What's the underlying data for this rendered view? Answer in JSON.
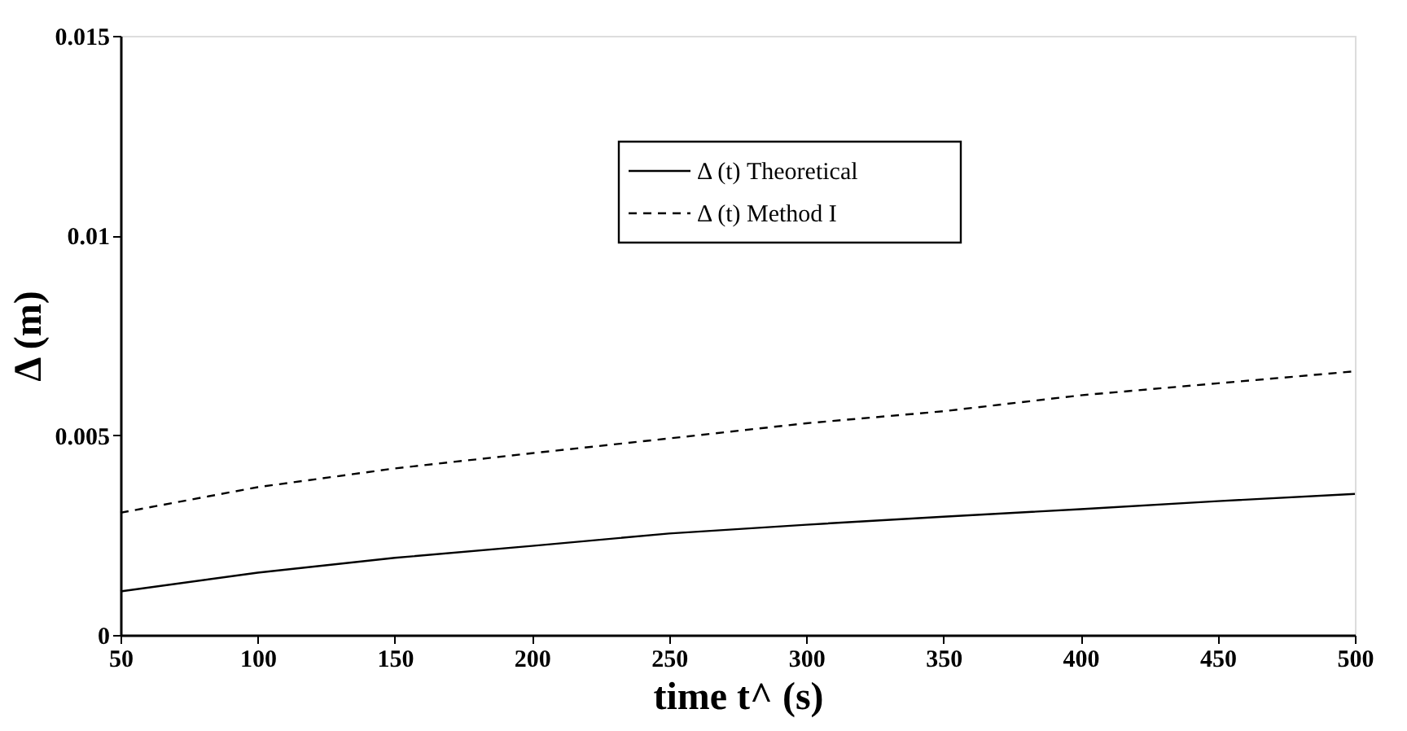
{
  "chart_data": {
    "type": "line",
    "xlabel": "time t^ (s)",
    "ylabel": "Δ (m)",
    "x": [
      50,
      100,
      150,
      200,
      250,
      300,
      350,
      400,
      450,
      500
    ],
    "series": [
      {
        "name": "Δ (t) Theoretical",
        "color": "#000000",
        "line_style": "solid",
        "values": [
          0.00109,
          0.00156,
          0.00193,
          0.00223,
          0.00254,
          0.00276,
          0.00296,
          0.00315,
          0.00335,
          0.00353
        ]
      },
      {
        "name": "Δ (t) Method I",
        "color": "#000000",
        "line_style": "dashed",
        "values": [
          0.00306,
          0.0037,
          0.00417,
          0.00455,
          0.00492,
          0.0053,
          0.0056,
          0.006,
          0.0063,
          0.0066
        ]
      }
    ],
    "xlim": [
      50,
      500
    ],
    "xticks": [
      50,
      100,
      150,
      200,
      250,
      300,
      350,
      400,
      450,
      500
    ],
    "ylim": [
      0,
      0.015
    ],
    "yticks": [
      0,
      0.005,
      0.01,
      0.015
    ],
    "grid": false,
    "legend": "top right",
    "marker": "none"
  }
}
